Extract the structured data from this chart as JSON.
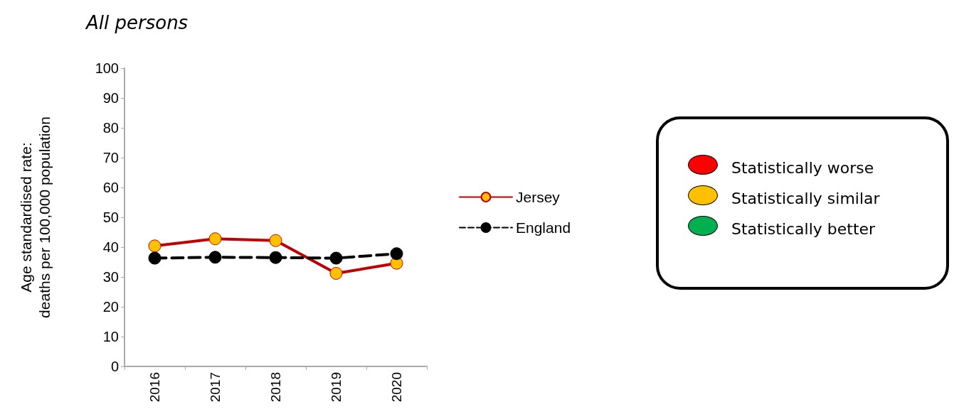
{
  "chart_data": {
    "type": "line",
    "title": "All persons",
    "ylabel": "Age standardised rate:\ndeaths per 100,000 population",
    "categories": [
      "2016",
      "2017",
      "2018",
      "2019",
      "2020"
    ],
    "series": [
      {
        "name": "Jersey",
        "color": "#c00000",
        "colors": [
          "#ffc000",
          "#ffc000",
          "#ffc000",
          "#ffc000",
          "#ffc000"
        ],
        "line_style": "solid",
        "values": [
          40.4,
          42.8,
          42.2,
          31.2,
          34.6
        ]
      },
      {
        "name": "England",
        "color": "#000000",
        "colors": [
          "#000000",
          "#000000",
          "#000000",
          "#000000",
          "#000000"
        ],
        "line_style": "dashed",
        "values": [
          36.3,
          36.6,
          36.5,
          36.3,
          37.8
        ]
      }
    ],
    "ylim": [
      0,
      100
    ],
    "yticks": [
      0,
      10,
      20,
      30,
      40,
      50,
      60,
      70,
      80,
      90,
      100
    ],
    "grid": false,
    "legend": "right",
    "marker": "circle",
    "annotations": [
      "Statistically worse",
      "Statistically similar",
      "Statistically better"
    ]
  }
}
